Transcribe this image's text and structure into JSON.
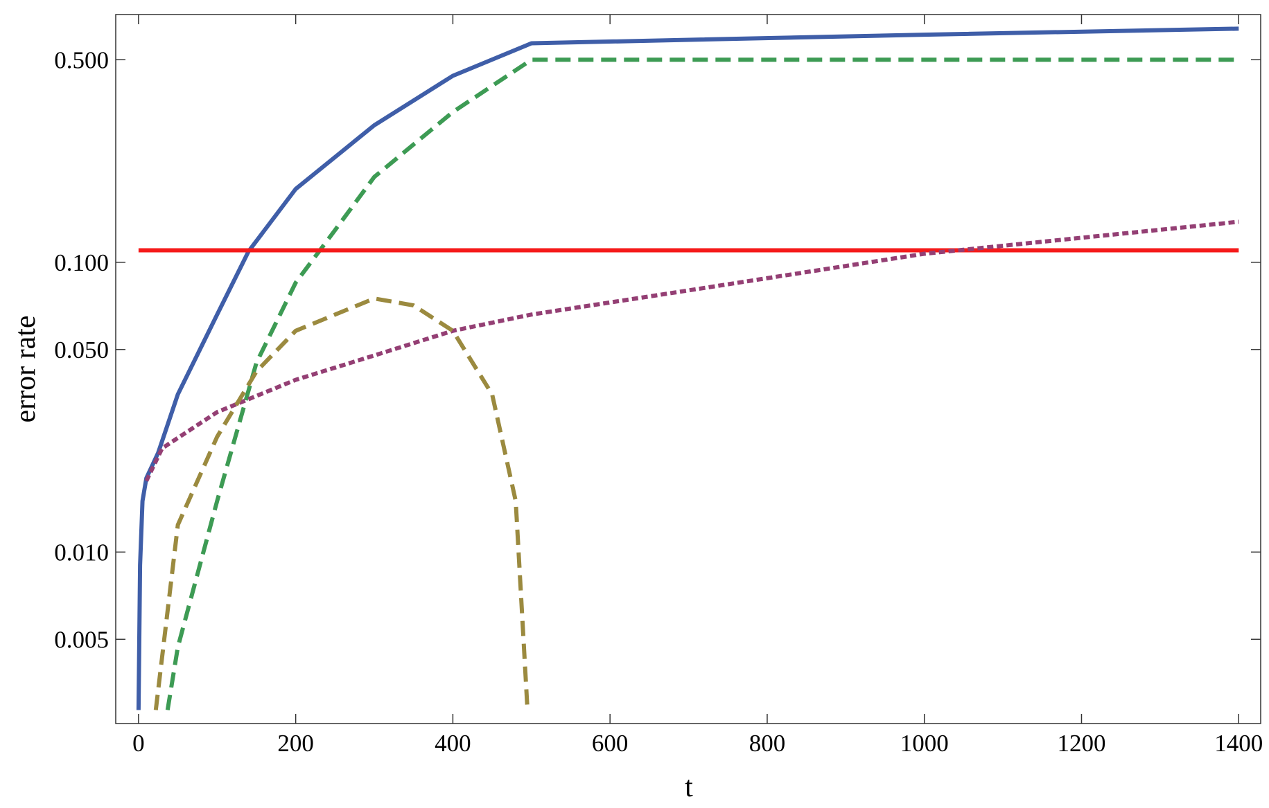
{
  "chart_data": {
    "type": "line",
    "x_label": "t",
    "y_label": "error rate",
    "y_scale": "log",
    "xlim": [
      -29,
      1428
    ],
    "ylim": [
      0.00256,
      0.716
    ],
    "xticks": [
      0,
      200,
      400,
      600,
      800,
      1000,
      1200,
      1400
    ],
    "yticks": [
      {
        "value": 0.005,
        "label": "0.005"
      },
      {
        "value": 0.01,
        "label": "0.010"
      },
      {
        "value": 0.05,
        "label": "0.050"
      },
      {
        "value": 0.1,
        "label": "0.100"
      },
      {
        "value": 0.5,
        "label": "0.500"
      }
    ],
    "series": [
      {
        "color": "#3f5ea8",
        "style": "solid",
        "x": [
          0,
          2,
          5,
          10,
          25,
          50,
          100,
          140,
          200,
          300,
          400,
          500,
          1000,
          1400
        ],
        "values": [
          0.00285,
          0.009,
          0.015,
          0.018,
          0.022,
          0.035,
          0.066,
          0.109,
          0.179,
          0.297,
          0.44,
          0.57,
          0.61,
          0.64
        ]
      },
      {
        "color": "#3d9b54",
        "style": "dashed",
        "x": [
          37,
          50,
          100,
          150,
          200,
          250,
          300,
          400,
          500,
          1400
        ],
        "values": [
          0.00285,
          0.0047,
          0.015,
          0.045,
          0.085,
          0.129,
          0.197,
          0.33,
          0.5,
          0.5
        ]
      },
      {
        "color": "#f51a1a",
        "style": "solid",
        "x": [
          0,
          1400
        ],
        "values": [
          0.11,
          0.11
        ]
      },
      {
        "color": "#943f74",
        "style": "dotted",
        "x": [
          10,
          30,
          100,
          200,
          300,
          400,
          500,
          700,
          1000,
          1400
        ],
        "values": [
          0.0176,
          0.0228,
          0.0304,
          0.0393,
          0.0477,
          0.058,
          0.066,
          0.08,
          0.107,
          0.138
        ]
      },
      {
        "color": "#9b8a3f",
        "style": "dashed",
        "x": [
          22,
          50,
          100,
          150,
          200,
          300,
          350,
          400,
          450,
          480,
          495
        ],
        "values": [
          0.00285,
          0.0124,
          0.025,
          0.042,
          0.058,
          0.075,
          0.071,
          0.058,
          0.035,
          0.015,
          0.00285
        ]
      }
    ]
  }
}
